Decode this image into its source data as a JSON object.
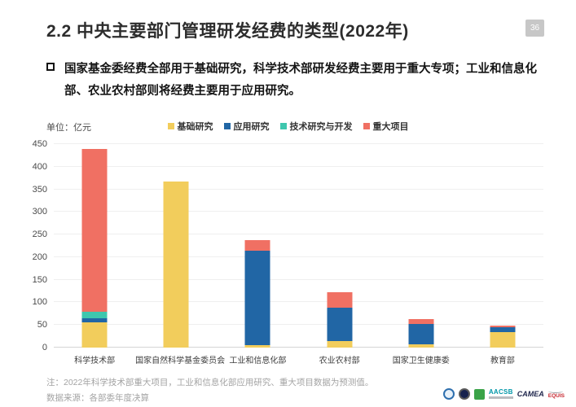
{
  "slide": {
    "title": "2.2  中央主要部门管理研发经费的类型(2022年)",
    "page_number": "36",
    "bullet_text": "国家基金委经费全部用于基础研究，科学技术部研发经费主要用于重大专项；工业和信息化部、农业农村部则将经费主要用于应用研究。",
    "unit_label": "单位：亿元",
    "note_line1": "注：2022年科学技术部重大项目，工业和信息化部应用研究、重大项目数据为预测值。",
    "note_line2": "数据来源：各部委年度决算",
    "badge_color": "#c7c7c7",
    "logos": {
      "aacsb": "AACSB",
      "camea": "CAMEA",
      "equis": "EQUIS"
    }
  },
  "chart_data": {
    "type": "bar",
    "stacked": true,
    "title": "",
    "xlabel": "",
    "ylabel": "亿元",
    "unit": "亿元",
    "ylim": [
      0,
      450
    ],
    "ytick_step": 50,
    "grid": true,
    "legend_position": "top",
    "categories": [
      "科学技术部",
      "国家自然科学基金委员会",
      "工业和信息化部",
      "农业农村部",
      "国家卫生健康委",
      "教育部"
    ],
    "series": [
      {
        "name": "基础研究",
        "color": "#F2CD5C",
        "values": [
          55,
          367,
          5,
          15,
          7,
          35
        ]
      },
      {
        "name": "应用研究",
        "color": "#2166A5",
        "values": [
          9,
          0,
          210,
          74,
          45,
          10
        ]
      },
      {
        "name": "技术研究与开发",
        "color": "#3EC7AE",
        "values": [
          16,
          0,
          0,
          0,
          0,
          0
        ]
      },
      {
        "name": "重大项目",
        "color": "#F07063",
        "values": [
          360,
          0,
          22,
          34,
          11,
          3
        ]
      }
    ],
    "totals": [
      440,
      367,
      237,
      123,
      63,
      48
    ]
  }
}
